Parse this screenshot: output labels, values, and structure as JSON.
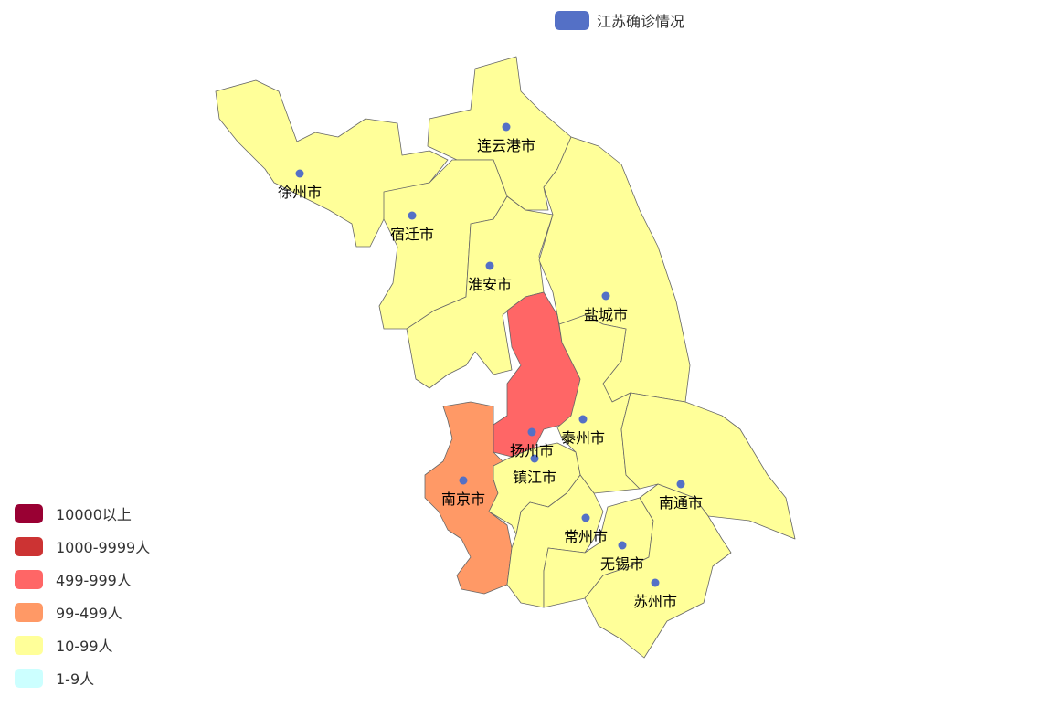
{
  "legend": {
    "series_name": "江苏确诊情况",
    "color": "#5470c6"
  },
  "visual_map": [
    {
      "label": "10000以上",
      "color": "#990033"
    },
    {
      "label": "1000-9999人",
      "color": "#cc3333"
    },
    {
      "label": "499-999人",
      "color": "#ff6666"
    },
    {
      "label": "99-499人",
      "color": "#ff9966"
    },
    {
      "label": "10-99人",
      "color": "#ffff99"
    },
    {
      "label": "1-9人",
      "color": "#ccffff"
    }
  ],
  "cities": [
    {
      "name": "徐州市",
      "range": "10-99人"
    },
    {
      "name": "连云港市",
      "range": "10-99人"
    },
    {
      "name": "宿迁市",
      "range": "10-99人"
    },
    {
      "name": "淮安市",
      "range": "10-99人"
    },
    {
      "name": "盐城市",
      "range": "10-99人"
    },
    {
      "name": "扬州市",
      "range": "499-999人"
    },
    {
      "name": "泰州市",
      "range": "10-99人"
    },
    {
      "name": "南通市",
      "range": "10-99人"
    },
    {
      "name": "南京市",
      "range": "99-499人"
    },
    {
      "name": "镇江市",
      "range": "10-99人"
    },
    {
      "name": "常州市",
      "range": "10-99人"
    },
    {
      "name": "无锡市",
      "range": "10-99人"
    },
    {
      "name": "苏州市",
      "range": "10-99人"
    }
  ]
}
